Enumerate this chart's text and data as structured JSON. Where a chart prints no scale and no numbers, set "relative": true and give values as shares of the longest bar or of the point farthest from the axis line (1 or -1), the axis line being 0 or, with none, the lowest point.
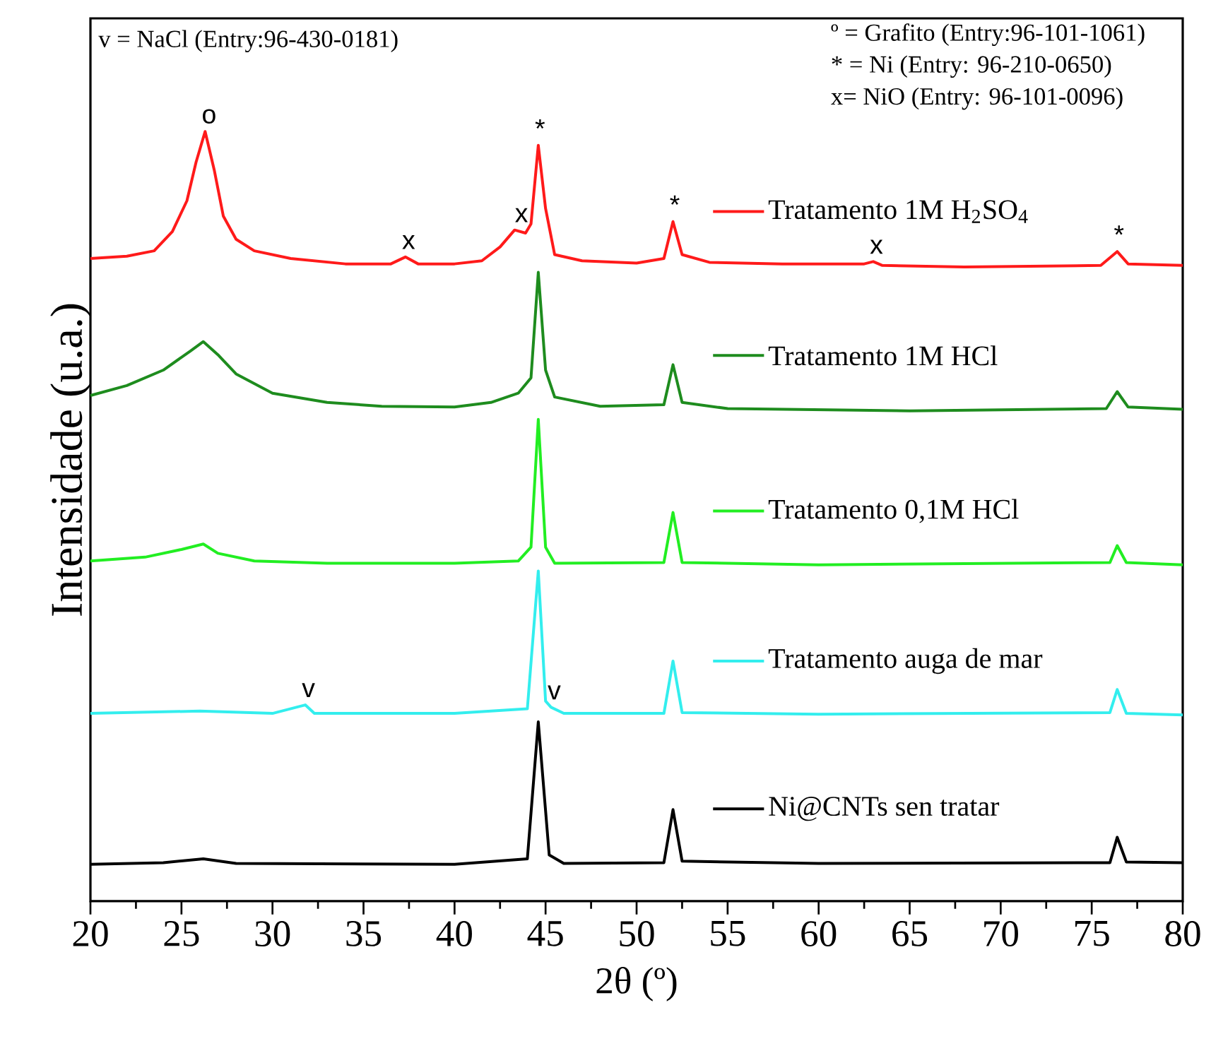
{
  "chart_data": {
    "type": "line",
    "relative": true,
    "xlabel": "2θ (º)",
    "ylabel": "Intensidade (u.a.)",
    "xlim": [
      20,
      80
    ],
    "xticks": [
      20,
      25,
      30,
      35,
      40,
      45,
      50,
      55,
      60,
      65,
      70,
      75,
      80
    ],
    "grid": false,
    "legend": "right",
    "marker": "none",
    "line_style": "solid",
    "annotations": [
      "v = NaCl (Entry:96-430-0181)",
      "º = Grafito (Entry:96-101-1061)",
      "* = Ni (Entry: 96-210-0650)",
      "x= NiO (Entry: 96-101-0096)",
      {
        "text": "o",
        "x": 26.3,
        "y": 1.0
      },
      {
        "text": "x",
        "x": 37.3,
        "y": 0.837
      },
      {
        "text": "x",
        "x": 43.5,
        "y": 0.872
      },
      {
        "text": "*",
        "x": 44.6,
        "y": 0.982
      },
      {
        "text": "*",
        "x": 52.0,
        "y": 0.883
      },
      {
        "text": "x",
        "x": 63.0,
        "y": 0.831
      },
      {
        "text": "*",
        "x": 76.4,
        "y": 0.844
      },
      {
        "text": "v",
        "x": 31.8,
        "y": 0.255
      },
      {
        "text": "v",
        "x": 45.3,
        "y": 0.252
      }
    ],
    "series": [
      {
        "name": "Tratamento 1M H$_{2}$SO$_{4}$",
        "color": "#ff1a1a",
        "x": [
          20,
          22,
          23.5,
          24.5,
          25.3,
          25.8,
          26.3,
          26.8,
          27.3,
          28,
          29,
          31,
          34,
          36.5,
          37.3,
          38,
          40,
          41.5,
          42.5,
          43.3,
          43.9,
          44.2,
          44.6,
          45.0,
          45.5,
          47,
          50,
          51.5,
          52.0,
          52.5,
          54,
          58,
          62.5,
          63,
          63.5,
          68,
          75.5,
          76.4,
          77,
          80
        ],
        "values": [
          0.835,
          0.838,
          0.845,
          0.87,
          0.91,
          0.96,
          1.0,
          0.95,
          0.89,
          0.86,
          0.845,
          0.835,
          0.828,
          0.828,
          0.837,
          0.828,
          0.828,
          0.832,
          0.85,
          0.872,
          0.868,
          0.88,
          0.982,
          0.9,
          0.84,
          0.832,
          0.829,
          0.835,
          0.883,
          0.84,
          0.83,
          0.828,
          0.828,
          0.831,
          0.826,
          0.824,
          0.826,
          0.844,
          0.828,
          0.826
        ]
      },
      {
        "name": "Tratamento 1M HCl",
        "color": "#1e8c1e",
        "x": [
          20,
          22,
          24,
          25.5,
          26.2,
          27,
          28,
          30,
          33,
          36,
          40,
          42,
          43.5,
          44.2,
          44.6,
          45.0,
          45.5,
          48,
          51.5,
          52,
          52.5,
          55,
          65,
          75.8,
          76.4,
          77,
          80
        ],
        "values": [
          0.657,
          0.67,
          0.69,
          0.715,
          0.727,
          0.71,
          0.685,
          0.66,
          0.648,
          0.643,
          0.642,
          0.648,
          0.66,
          0.68,
          0.817,
          0.69,
          0.655,
          0.643,
          0.645,
          0.697,
          0.648,
          0.64,
          0.637,
          0.64,
          0.662,
          0.642,
          0.639
        ]
      },
      {
        "name": "Tratamento 0,1M HCl",
        "color": "#22ee22",
        "x": [
          20,
          23,
          25,
          26.2,
          27,
          29,
          33,
          40,
          43.5,
          44.2,
          44.6,
          45,
          45.5,
          51.5,
          52,
          52.5,
          60,
          76,
          76.4,
          76.9,
          80
        ],
        "values": [
          0.442,
          0.447,
          0.457,
          0.464,
          0.452,
          0.442,
          0.439,
          0.439,
          0.442,
          0.46,
          0.626,
          0.46,
          0.439,
          0.44,
          0.505,
          0.44,
          0.437,
          0.44,
          0.462,
          0.44,
          0.437
        ]
      },
      {
        "name": "Tratamento auga de mar",
        "color": "#33eeee",
        "x": [
          20,
          26,
          30,
          31.8,
          32.3,
          40,
          44.0,
          44.6,
          45.0,
          45.3,
          46,
          51.5,
          52,
          52.5,
          60,
          76,
          76.4,
          76.9,
          80
        ],
        "values": [
          0.244,
          0.247,
          0.244,
          0.255,
          0.244,
          0.244,
          0.25,
          0.429,
          0.26,
          0.252,
          0.244,
          0.244,
          0.312,
          0.245,
          0.243,
          0.245,
          0.275,
          0.244,
          0.242
        ]
      },
      {
        "name": "Ni@CNTs sen tratar",
        "color": "#000000",
        "x": [
          20,
          24,
          26.2,
          28,
          40,
          44.0,
          44.6,
          45.2,
          46,
          51.5,
          52,
          52.5,
          60,
          76,
          76.4,
          76.9,
          80
        ],
        "values": [
          0.048,
          0.05,
          0.055,
          0.049,
          0.048,
          0.055,
          0.233,
          0.06,
          0.049,
          0.05,
          0.119,
          0.052,
          0.049,
          0.05,
          0.083,
          0.051,
          0.05
        ]
      }
    ]
  }
}
